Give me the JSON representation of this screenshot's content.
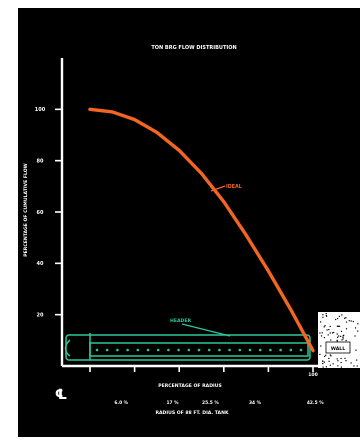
{
  "chart_data": {
    "type": "line",
    "title": "TON BRG FLOW DISTRIBUTION",
    "xlabel": "PERCENTAGE OF RADIUS",
    "ylabel": "PERCENTAGE OF CUMULATIVE FLOW",
    "secondary_xlabel": "RADIUS OF 88 FT. DIA. TANK",
    "xlim": [
      0,
      100
    ],
    "ylim": [
      0,
      120
    ],
    "x_ticks": [
      0,
      20,
      40,
      60,
      80,
      100
    ],
    "x_tick_labels": [
      "",
      "",
      "",
      "",
      "",
      "100"
    ],
    "y_ticks": [
      20,
      40,
      60,
      80,
      100
    ],
    "y_tick_labels": [
      "20",
      "40",
      "60",
      "80",
      "100"
    ],
    "secondary_x_ticks": [
      {
        "x": 14,
        "label": "6.0 %"
      },
      {
        "x": 37,
        "label": "17 %"
      },
      {
        "x": 54,
        "label": "25.5 %"
      },
      {
        "x": 74,
        "label": "34 %"
      },
      {
        "x": 101,
        "label": "42.5 %"
      }
    ],
    "series": [
      {
        "name": "IDEAL",
        "color": "#f26522",
        "x": [
          0,
          10,
          20,
          30,
          40,
          50,
          60,
          70,
          80,
          90,
          100
        ],
        "y": [
          100,
          99,
          96,
          91,
          84,
          75,
          64,
          51,
          37,
          22,
          6
        ]
      }
    ],
    "annotations": {
      "ideal_label": "IDEAL",
      "header_label": "HEADER",
      "wall_label": "WALL",
      "centerline_symbol": "℄"
    },
    "colors": {
      "background": "#000000",
      "axes": "#ffffff",
      "ideal": "#f26522",
      "header": "#2ec79a"
    },
    "grid": false
  }
}
